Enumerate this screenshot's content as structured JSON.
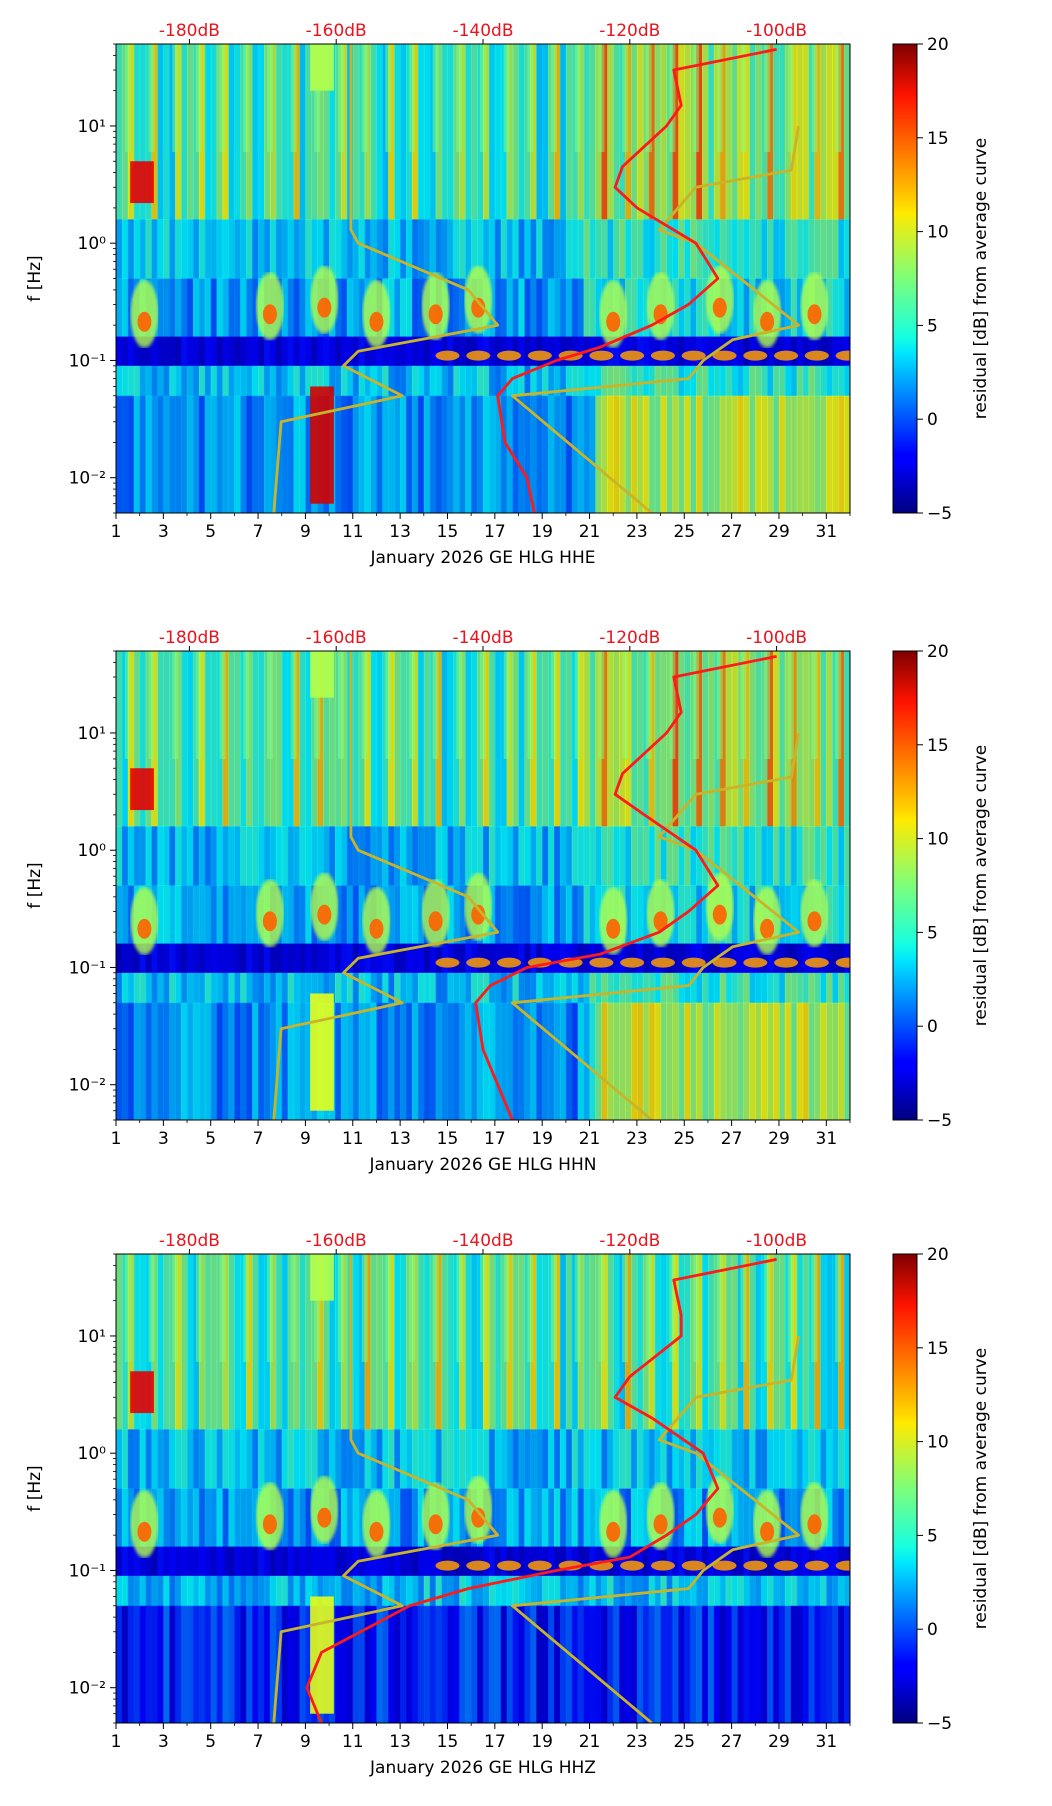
{
  "chart_data": [
    {
      "type": "heatmap",
      "channel": "HHE",
      "xlabel": "January 2026 GE HLG  HHE",
      "ylabel": "f [Hz]",
      "x_ticks": [
        "1",
        "3",
        "5",
        "7",
        "9",
        "11",
        "13",
        "15",
        "17",
        "19",
        "21",
        "23",
        "25",
        "27",
        "29",
        "31"
      ],
      "xlim": [
        1,
        32
      ],
      "ylim": [
        0.005,
        50
      ],
      "y_scale": "log",
      "y_ticks": [
        "10⁻²",
        "10⁻¹",
        "10⁰",
        "10¹"
      ],
      "top_axis_labels": [
        "-180dB",
        "-160dB",
        "-140dB",
        "-120dB",
        "-100dB"
      ],
      "colorbar": {
        "label": "residual [dB] from average curve",
        "range": [
          -5,
          20
        ],
        "ticks": [
          "−5",
          "0",
          "5",
          "10",
          "15",
          "20"
        ]
      },
      "noise_model_curves": {
        "low_model_db": [
          [
            0.005,
            -168.5
          ],
          [
            0.03,
            -167.5
          ],
          [
            0.05,
            -151
          ],
          [
            0.09,
            -159
          ],
          [
            0.12,
            -157
          ],
          [
            0.2,
            -138
          ],
          [
            0.4,
            -142
          ],
          [
            1.0,
            -157
          ],
          [
            1.3,
            -158
          ],
          [
            3,
            -158
          ],
          [
            10,
            -158
          ],
          [
            50,
            -158
          ]
        ],
        "high_model_db": [
          [
            0.005,
            -117
          ],
          [
            0.05,
            -136
          ],
          [
            0.07,
            -112
          ],
          [
            0.1,
            -110
          ],
          [
            0.15,
            -106
          ],
          [
            0.2,
            -97
          ],
          [
            0.4,
            -103
          ],
          [
            1.0,
            -111
          ],
          [
            1.3,
            -116
          ],
          [
            3,
            -111
          ],
          [
            4.2,
            -98
          ],
          [
            10,
            -97
          ]
        ]
      },
      "average_psd_db": [
        [
          0.005,
          -133
        ],
        [
          0.01,
          -134
        ],
        [
          0.02,
          -137
        ],
        [
          0.05,
          -138
        ],
        [
          0.07,
          -136
        ],
        [
          0.1,
          -130
        ],
        [
          0.13,
          -124
        ],
        [
          0.2,
          -117
        ],
        [
          0.3,
          -112
        ],
        [
          0.5,
          -108
        ],
        [
          1.0,
          -111
        ],
        [
          2.0,
          -119
        ],
        [
          3.0,
          -122
        ],
        [
          4.5,
          -121
        ],
        [
          10,
          -115
        ],
        [
          15,
          -113
        ],
        [
          30,
          -114
        ],
        [
          45,
          -100
        ]
      ]
    },
    {
      "type": "heatmap",
      "channel": "HHN",
      "xlabel": "January 2026 GE HLG  HHN",
      "ylabel": "f [Hz]",
      "x_ticks": [
        "1",
        "3",
        "5",
        "7",
        "9",
        "11",
        "13",
        "15",
        "17",
        "19",
        "21",
        "23",
        "25",
        "27",
        "29",
        "31"
      ],
      "xlim": [
        1,
        32
      ],
      "ylim": [
        0.005,
        50
      ],
      "y_scale": "log",
      "y_ticks": [
        "10⁻²",
        "10⁻¹",
        "10⁰",
        "10¹"
      ],
      "top_axis_labels": [
        "-180dB",
        "-160dB",
        "-140dB",
        "-120dB",
        "-100dB"
      ],
      "colorbar": {
        "label": "residual [dB] from average curve",
        "range": [
          -5,
          20
        ],
        "ticks": [
          "−5",
          "0",
          "5",
          "10",
          "15",
          "20"
        ]
      },
      "noise_model_curves": {
        "low_model_db": [
          [
            0.005,
            -168.5
          ],
          [
            0.03,
            -167.5
          ],
          [
            0.05,
            -151
          ],
          [
            0.09,
            -159
          ],
          [
            0.12,
            -157
          ],
          [
            0.2,
            -138
          ],
          [
            0.4,
            -142
          ],
          [
            1.0,
            -157
          ],
          [
            1.3,
            -158
          ],
          [
            3,
            -158
          ],
          [
            10,
            -158
          ],
          [
            50,
            -158
          ]
        ],
        "high_model_db": [
          [
            0.005,
            -117
          ],
          [
            0.05,
            -136
          ],
          [
            0.07,
            -112
          ],
          [
            0.1,
            -110
          ],
          [
            0.15,
            -106
          ],
          [
            0.2,
            -97
          ],
          [
            0.4,
            -103
          ],
          [
            1.0,
            -111
          ],
          [
            1.3,
            -116
          ],
          [
            3,
            -111
          ],
          [
            4.2,
            -98
          ],
          [
            10,
            -97
          ]
        ]
      },
      "average_psd_db": [
        [
          0.005,
          -136
        ],
        [
          0.01,
          -138
        ],
        [
          0.02,
          -140
        ],
        [
          0.05,
          -141
        ],
        [
          0.07,
          -139
        ],
        [
          0.1,
          -134
        ],
        [
          0.13,
          -124
        ],
        [
          0.2,
          -116
        ],
        [
          0.3,
          -112
        ],
        [
          0.5,
          -108
        ],
        [
          1.0,
          -111
        ],
        [
          2.0,
          -118
        ],
        [
          3.0,
          -122
        ],
        [
          4.5,
          -121
        ],
        [
          10,
          -115
        ],
        [
          15,
          -113
        ],
        [
          30,
          -114
        ],
        [
          45,
          -100
        ]
      ]
    },
    {
      "type": "heatmap",
      "channel": "HHZ",
      "xlabel": "January 2026 GE HLG  HHZ",
      "ylabel": "f [Hz]",
      "x_ticks": [
        "1",
        "3",
        "5",
        "7",
        "9",
        "11",
        "13",
        "15",
        "17",
        "19",
        "21",
        "23",
        "25",
        "27",
        "29",
        "31"
      ],
      "xlim": [
        1,
        32
      ],
      "ylim": [
        0.005,
        50
      ],
      "y_scale": "log",
      "y_ticks": [
        "10⁻²",
        "10⁻¹",
        "10⁰",
        "10¹"
      ],
      "top_axis_labels": [
        "-180dB",
        "-160dB",
        "-140dB",
        "-120dB",
        "-100dB"
      ],
      "colorbar": {
        "label": "residual [dB] from average curve",
        "range": [
          -5,
          20
        ],
        "ticks": [
          "−5",
          "0",
          "5",
          "10",
          "15",
          "20"
        ]
      },
      "noise_model_curves": {
        "low_model_db": [
          [
            0.005,
            -168.5
          ],
          [
            0.03,
            -167.5
          ],
          [
            0.05,
            -151
          ],
          [
            0.09,
            -159
          ],
          [
            0.12,
            -157
          ],
          [
            0.2,
            -138
          ],
          [
            0.4,
            -142
          ],
          [
            1.0,
            -157
          ],
          [
            1.3,
            -158
          ],
          [
            3,
            -158
          ],
          [
            10,
            -158
          ],
          [
            50,
            -158
          ]
        ],
        "high_model_db": [
          [
            0.005,
            -117
          ],
          [
            0.05,
            -136
          ],
          [
            0.07,
            -112
          ],
          [
            0.1,
            -110
          ],
          [
            0.15,
            -106
          ],
          [
            0.2,
            -97
          ],
          [
            0.4,
            -103
          ],
          [
            1.0,
            -111
          ],
          [
            1.3,
            -116
          ],
          [
            3,
            -111
          ],
          [
            4.2,
            -98
          ],
          [
            10,
            -97
          ]
        ]
      },
      "average_psd_db": [
        [
          0.005,
          -162
        ],
        [
          0.01,
          -164
        ],
        [
          0.02,
          -162
        ],
        [
          0.05,
          -150
        ],
        [
          0.07,
          -142
        ],
        [
          0.1,
          -130
        ],
        [
          0.13,
          -120
        ],
        [
          0.2,
          -115
        ],
        [
          0.3,
          -111
        ],
        [
          0.5,
          -108
        ],
        [
          1.0,
          -110
        ],
        [
          2.0,
          -117
        ],
        [
          3.0,
          -122
        ],
        [
          4.5,
          -120
        ],
        [
          10,
          -113
        ],
        [
          15,
          -113
        ],
        [
          30,
          -114
        ],
        [
          45,
          -100
        ]
      ]
    }
  ]
}
